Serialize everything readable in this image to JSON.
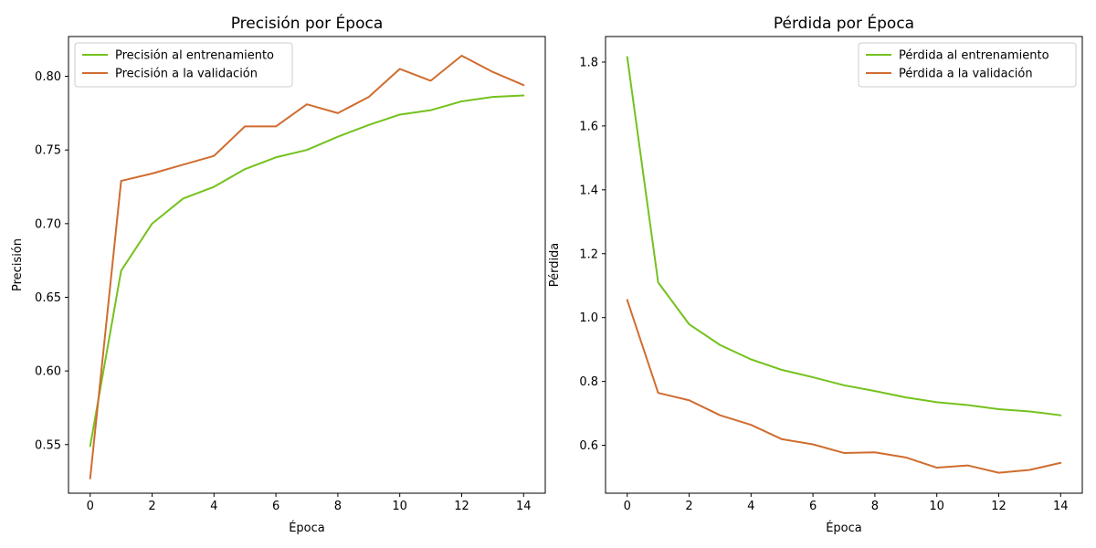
{
  "chart_data": [
    {
      "type": "line",
      "title": "Precisión por Época",
      "xlabel": "Época",
      "ylabel": "Precisión",
      "xlim": [
        -0.7,
        14.7
      ],
      "ylim": [
        0.517,
        0.827
      ],
      "xticks": [
        0,
        2,
        4,
        6,
        8,
        10,
        12,
        14
      ],
      "yticks": [
        0.55,
        0.6,
        0.65,
        0.7,
        0.75,
        0.8
      ],
      "ytick_labels": [
        "0.55",
        "0.60",
        "0.65",
        "0.70",
        "0.75",
        "0.80"
      ],
      "grid": false,
      "legend_position": "top-left",
      "x": [
        0,
        1,
        2,
        3,
        4,
        5,
        6,
        7,
        8,
        9,
        10,
        11,
        12,
        13,
        14
      ],
      "series": [
        {
          "name": "Precisión al entrenamiento",
          "color": "#74c21e",
          "values": [
            0.549,
            0.668,
            0.7,
            0.717,
            0.725,
            0.737,
            0.745,
            0.75,
            0.759,
            0.767,
            0.774,
            0.777,
            0.783,
            0.786,
            0.787
          ]
        },
        {
          "name": "Precisión a la validación",
          "color": "#cf6d30",
          "values": [
            0.527,
            0.729,
            0.734,
            0.74,
            0.746,
            0.766,
            0.766,
            0.781,
            0.775,
            0.786,
            0.805,
            0.797,
            0.814,
            0.803,
            0.794
          ]
        }
      ]
    },
    {
      "type": "line",
      "title": "Pérdida por Época",
      "xlabel": "Época",
      "ylabel": "Pérdida",
      "xlim": [
        -0.7,
        14.7
      ],
      "ylim": [
        0.45,
        1.88
      ],
      "xticks": [
        0,
        2,
        4,
        6,
        8,
        10,
        12,
        14
      ],
      "yticks": [
        0.6,
        0.8,
        1.0,
        1.2,
        1.4,
        1.6,
        1.8
      ],
      "ytick_labels": [
        "0.6",
        "0.8",
        "1.0",
        "1.2",
        "1.4",
        "1.6",
        "1.8"
      ],
      "grid": false,
      "legend_position": "top-right",
      "x": [
        0,
        1,
        2,
        3,
        4,
        5,
        6,
        7,
        8,
        9,
        10,
        11,
        12,
        13,
        14
      ],
      "series": [
        {
          "name": "Pérdida al entrenamiento",
          "color": "#74c21e",
          "values": [
            1.816,
            1.11,
            0.979,
            0.914,
            0.869,
            0.836,
            0.813,
            0.788,
            0.77,
            0.75,
            0.735,
            0.726,
            0.713,
            0.706,
            0.694
          ]
        },
        {
          "name": "Pérdida a la validación",
          "color": "#cf6d30",
          "values": [
            1.055,
            0.764,
            0.741,
            0.694,
            0.664,
            0.619,
            0.603,
            0.576,
            0.578,
            0.562,
            0.53,
            0.537,
            0.514,
            0.523,
            0.545
          ]
        }
      ]
    }
  ]
}
